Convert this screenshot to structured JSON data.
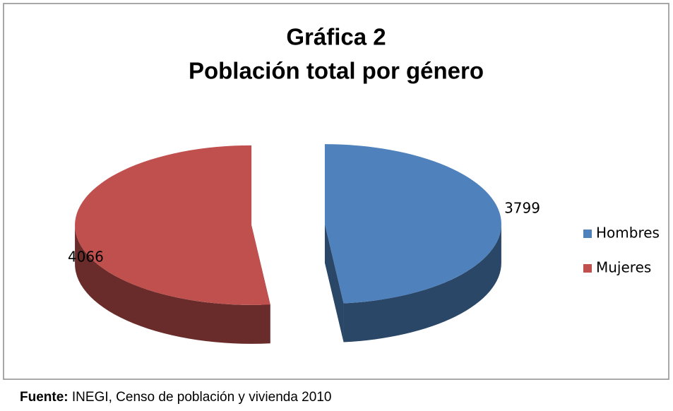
{
  "chart_data": {
    "type": "pie",
    "title": [
      "Gráfica 2",
      "Población total por género"
    ],
    "categories": [
      "Hombres",
      "Mujeres"
    ],
    "values": [
      3799,
      4066
    ],
    "colors": [
      "#4f81bd",
      "#c0504d"
    ],
    "legend": "right"
  },
  "source": {
    "label": "Fuente:",
    "text": "INEGI, Censo de población y vivienda 2010"
  }
}
